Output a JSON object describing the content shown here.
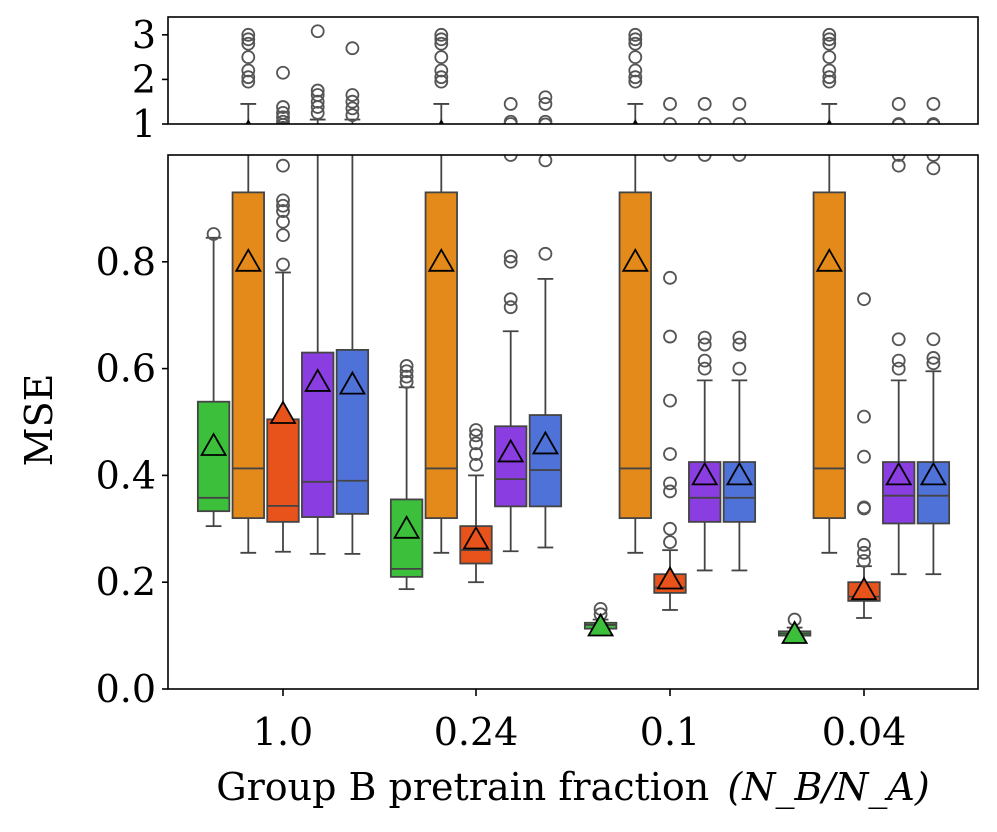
{
  "chart_data": {
    "type": "boxplot",
    "xlabel": "Group B pretrain fraction",
    "xlabel_math": "(N_B/N_A)",
    "ylabel": "MSE",
    "categories": [
      "1.0",
      "0.24",
      "0.1",
      "0.04"
    ],
    "series": [
      {
        "name": "green",
        "color": "#3cc03c"
      },
      {
        "name": "orange",
        "color": "#e38a1a"
      },
      {
        "name": "red-orange",
        "color": "#e8531c"
      },
      {
        "name": "purple",
        "color": "#8a3de0"
      },
      {
        "name": "blue",
        "color": "#4f72d8"
      }
    ],
    "main_axis": {
      "ylim": [
        0,
        1.0
      ],
      "yticks": [
        "0.0",
        "0.2",
        "0.4",
        "0.6",
        "0.8"
      ],
      "ytick_values": [
        0,
        0.2,
        0.4,
        0.6,
        0.8
      ]
    },
    "top_axis": {
      "ylim": [
        1,
        3.4
      ],
      "yticks": [
        "1",
        "2",
        "3"
      ],
      "ytick_values": [
        1,
        2,
        3
      ]
    },
    "boxes": [
      {
        "cat": 0,
        "s": 0,
        "q1": 0.333,
        "med": 0.358,
        "q3": 0.538,
        "wlo": 0.305,
        "whi": 0.845,
        "mean": 0.455,
        "out": [
          0.852
        ]
      },
      {
        "cat": 0,
        "s": 1,
        "q1": 0.32,
        "med": 0.413,
        "q3": 0.93,
        "wlo": 0.255,
        "whi": 1.45,
        "mean": 0.8,
        "out": [
          1.95,
          2.05,
          2.2,
          2.5,
          2.8,
          2.9,
          3.0
        ]
      },
      {
        "cat": 0,
        "s": 2,
        "q1": 0.313,
        "med": 0.343,
        "q3": 0.505,
        "wlo": 0.257,
        "whi": 0.78,
        "mean": 0.515,
        "out": [
          0.795,
          0.85,
          0.875,
          0.895,
          0.905,
          0.915,
          0.98,
          1.05,
          1.15,
          1.25,
          1.38,
          2.15
        ]
      },
      {
        "cat": 0,
        "s": 3,
        "q1": 0.322,
        "med": 0.388,
        "q3": 0.63,
        "wlo": 0.253,
        "whi": 1.1,
        "mean": 0.575,
        "out": [
          1.25,
          1.38,
          1.5,
          1.65,
          1.75,
          3.08
        ]
      },
      {
        "cat": 0,
        "s": 4,
        "q1": 0.328,
        "med": 0.39,
        "q3": 0.635,
        "wlo": 0.253,
        "whi": 1.1,
        "mean": 0.57,
        "out": [
          1.2,
          1.35,
          1.5,
          1.65,
          2.7
        ]
      },
      {
        "cat": 1,
        "s": 0,
        "q1": 0.21,
        "med": 0.225,
        "q3": 0.355,
        "wlo": 0.187,
        "whi": 0.565,
        "mean": 0.3,
        "out": [
          0.575,
          0.585,
          0.595,
          0.605
        ]
      },
      {
        "cat": 1,
        "s": 1,
        "q1": 0.32,
        "med": 0.413,
        "q3": 0.93,
        "wlo": 0.255,
        "whi": 1.45,
        "mean": 0.8,
        "out": [
          1.95,
          2.05,
          2.2,
          2.5,
          2.8,
          2.9,
          3.0
        ]
      },
      {
        "cat": 1,
        "s": 2,
        "q1": 0.235,
        "med": 0.26,
        "q3": 0.305,
        "wlo": 0.2,
        "whi": 0.4,
        "mean": 0.28,
        "out": [
          0.42,
          0.44,
          0.46,
          0.475,
          0.485
        ]
      },
      {
        "cat": 1,
        "s": 3,
        "q1": 0.342,
        "med": 0.393,
        "q3": 0.492,
        "wlo": 0.258,
        "whi": 0.67,
        "mean": 0.443,
        "out": [
          0.715,
          0.73,
          0.8,
          0.81,
          1.0,
          1.05,
          1.45
        ]
      },
      {
        "cat": 1,
        "s": 4,
        "q1": 0.342,
        "med": 0.41,
        "q3": 0.513,
        "wlo": 0.265,
        "whi": 0.768,
        "mean": 0.458,
        "out": [
          0.815,
          0.99,
          1.05,
          1.45,
          1.6
        ]
      },
      {
        "cat": 2,
        "s": 0,
        "q1": 0.113,
        "med": 0.12,
        "q3": 0.124,
        "wlo": 0.11,
        "whi": 0.13,
        "mean": 0.117,
        "out": [
          0.14,
          0.15
        ]
      },
      {
        "cat": 2,
        "s": 1,
        "q1": 0.32,
        "med": 0.413,
        "q3": 0.93,
        "wlo": 0.255,
        "whi": 1.45,
        "mean": 0.8,
        "out": [
          1.95,
          2.05,
          2.2,
          2.5,
          2.8,
          2.9,
          3.0
        ]
      },
      {
        "cat": 2,
        "s": 2,
        "q1": 0.18,
        "med": 0.19,
        "q3": 0.215,
        "wlo": 0.148,
        "whi": 0.26,
        "mean": 0.205,
        "out": [
          0.275,
          0.3,
          0.37,
          0.385,
          0.44,
          0.54,
          0.66,
          0.77,
          1.0,
          1.45
        ]
      },
      {
        "cat": 2,
        "s": 3,
        "q1": 0.313,
        "med": 0.358,
        "q3": 0.425,
        "wlo": 0.222,
        "whi": 0.578,
        "mean": 0.4,
        "out": [
          0.6,
          0.615,
          0.645,
          0.658,
          1.0,
          1.45
        ]
      },
      {
        "cat": 2,
        "s": 4,
        "q1": 0.313,
        "med": 0.358,
        "q3": 0.425,
        "wlo": 0.222,
        "whi": 0.578,
        "mean": 0.4,
        "out": [
          0.6,
          0.645,
          0.658,
          1.0,
          1.45
        ]
      },
      {
        "cat": 3,
        "s": 0,
        "q1": 0.1,
        "med": 0.104,
        "q3": 0.108,
        "wlo": 0.098,
        "whi": 0.115,
        "mean": 0.103,
        "out": [
          0.13
        ]
      },
      {
        "cat": 3,
        "s": 1,
        "q1": 0.32,
        "med": 0.413,
        "q3": 0.93,
        "wlo": 0.255,
        "whi": 1.45,
        "mean": 0.8,
        "out": [
          1.95,
          2.05,
          2.2,
          2.5,
          2.8,
          2.9,
          3.0
        ]
      },
      {
        "cat": 3,
        "s": 2,
        "q1": 0.165,
        "med": 0.173,
        "q3": 0.2,
        "wlo": 0.133,
        "whi": 0.23,
        "mean": 0.185,
        "out": [
          0.24,
          0.255,
          0.27,
          0.338,
          0.34,
          0.435,
          0.51,
          0.73
        ]
      },
      {
        "cat": 3,
        "s": 3,
        "q1": 0.31,
        "med": 0.362,
        "q3": 0.425,
        "wlo": 0.215,
        "whi": 0.578,
        "mean": 0.4,
        "out": [
          0.6,
          0.615,
          0.655,
          0.98,
          1.0,
          1.45
        ]
      },
      {
        "cat": 3,
        "s": 4,
        "q1": 0.31,
        "med": 0.362,
        "q3": 0.425,
        "wlo": 0.215,
        "whi": 0.595,
        "mean": 0.4,
        "out": [
          0.61,
          0.62,
          0.655,
          0.975,
          1.0,
          1.45
        ]
      }
    ]
  }
}
